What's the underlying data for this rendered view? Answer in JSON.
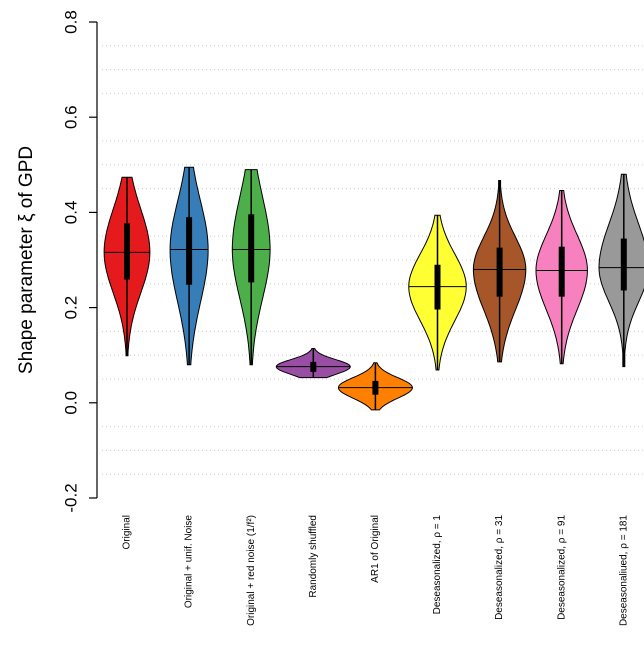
{
  "chart_data": {
    "type": "violin",
    "ylabel": "Shape parameter ξ of GPD",
    "ylim": [
      -0.2,
      0.8
    ],
    "yticks": [
      -0.2,
      {
        "value": 0,
        "label": "0.0"
      },
      0.2,
      0.4,
      0.6,
      0.8
    ],
    "grid": true,
    "grid_values": [
      -0.15,
      -0.1,
      -0.05,
      0.05,
      0.1,
      0.15,
      0.25,
      0.3,
      0.35,
      0.45,
      0.5,
      0.55,
      0.65,
      0.7,
      0.75
    ],
    "categories": [
      "Original",
      "Original + unif. Noise",
      "Original + red noise (1/f²)",
      "Randomly shuffled",
      "AR1 of Original",
      "Deseasonalized, ρ = 1",
      "Deseasonalized, ρ = 31",
      "Deseasonalized, ρ = 91",
      "Deseasonaliued, ρ = 181"
    ],
    "violins": [
      {
        "color": "#e41a1c",
        "min": 0.099,
        "q1": 0.259,
        "median": 0.316,
        "q3": 0.377,
        "max": 0.474
      },
      {
        "color": "#377eb8",
        "min": 0.08,
        "q1": 0.248,
        "median": 0.322,
        "q3": 0.39,
        "max": 0.495
      },
      {
        "color": "#4daf4a",
        "min": 0.08,
        "q1": 0.253,
        "median": 0.322,
        "q3": 0.396,
        "max": 0.49
      },
      {
        "color": "#984ea3",
        "min": 0.053,
        "q1": 0.065,
        "median": 0.076,
        "q3": 0.086,
        "max": 0.114
      },
      {
        "color": "#ff7f00",
        "min": -0.015,
        "q1": 0.017,
        "median": 0.032,
        "q3": 0.046,
        "max": 0.084
      },
      {
        "color": "#ffff33",
        "min": 0.069,
        "q1": 0.196,
        "median": 0.244,
        "q3": 0.29,
        "max": 0.394
      },
      {
        "color": "#a65628",
        "min": 0.086,
        "q1": 0.223,
        "median": 0.28,
        "q3": 0.326,
        "max": 0.467
      },
      {
        "color": "#f781bf",
        "min": 0.082,
        "q1": 0.223,
        "median": 0.278,
        "q3": 0.328,
        "max": 0.446
      },
      {
        "color": "#999999",
        "min": 0.076,
        "q1": 0.236,
        "median": 0.284,
        "q3": 0.345,
        "max": 0.48
      }
    ]
  }
}
